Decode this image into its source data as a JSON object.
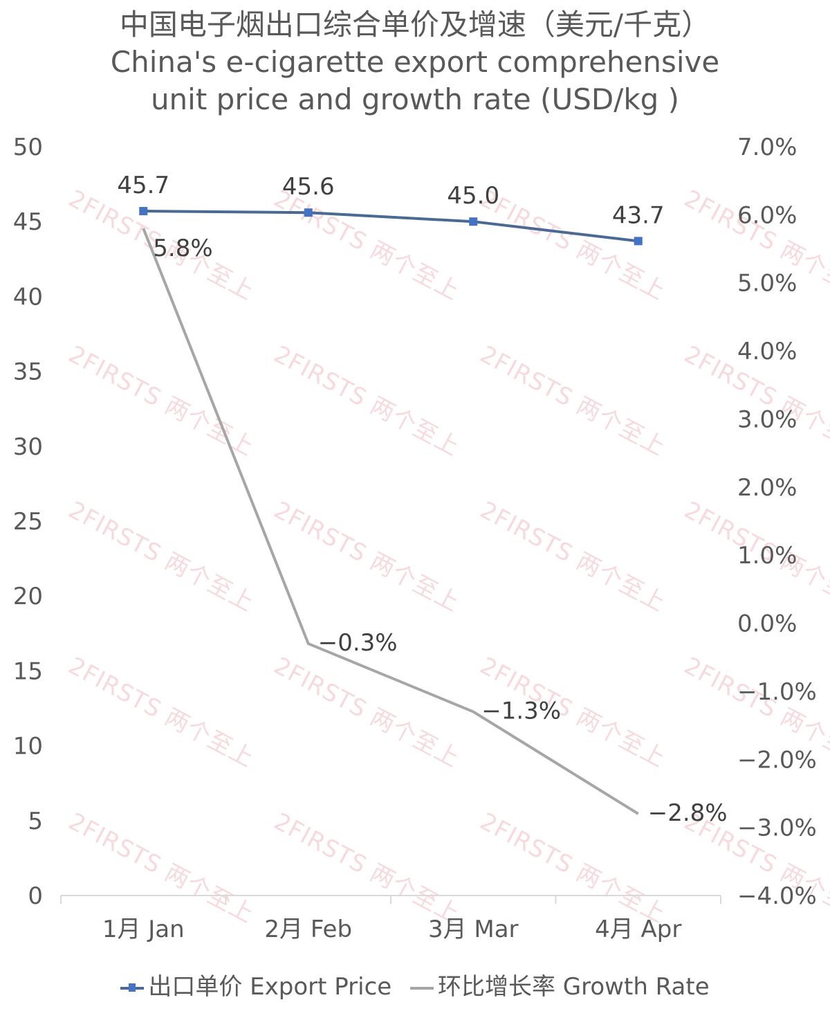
{
  "chart_data": {
    "type": "line",
    "title_zh": "中国电子烟出口综合单价及增速（美元/千克）",
    "title_en_line1": "China's e-cigarette export comprehensive",
    "title_en_line2": "unit price and growth rate (USD/kg )",
    "categories": [
      "1月 Jan",
      "2月 Feb",
      "3月 Mar",
      "4月 Apr"
    ],
    "y_left": {
      "ylim": [
        0,
        50
      ],
      "ticks": [
        "0",
        "5",
        "10",
        "15",
        "20",
        "25",
        "30",
        "35",
        "40",
        "45",
        "50"
      ]
    },
    "y_right": {
      "ylim": [
        -4.0,
        7.0
      ],
      "ticks": [
        "-4.0%",
        "-3.0%",
        "-2.0%",
        "-1.0%",
        "0.0%",
        "1.0%",
        "2.0%",
        "3.0%",
        "4.0%",
        "5.0%",
        "6.0%",
        "7.0%"
      ]
    },
    "series": [
      {
        "name": "出口单价 Export Price",
        "axis": "left",
        "values": [
          45.7,
          45.6,
          45.0,
          43.7
        ],
        "labels": [
          "45.7",
          "45.6",
          "45.0",
          "43.7"
        ],
        "color": "#4a6a94",
        "marker_color": "#4472c4"
      },
      {
        "name": "环比增长率 Growth Rate",
        "axis": "right",
        "values": [
          5.8,
          -0.3,
          -1.3,
          -2.8
        ],
        "labels": [
          "5.8%",
          "-0.3%",
          "-1.3%",
          "-2.8%"
        ],
        "color": "#a6a6a6"
      }
    ],
    "legend_position": "bottom",
    "grid": false
  },
  "watermark": "2FIRSTS 两个至上"
}
